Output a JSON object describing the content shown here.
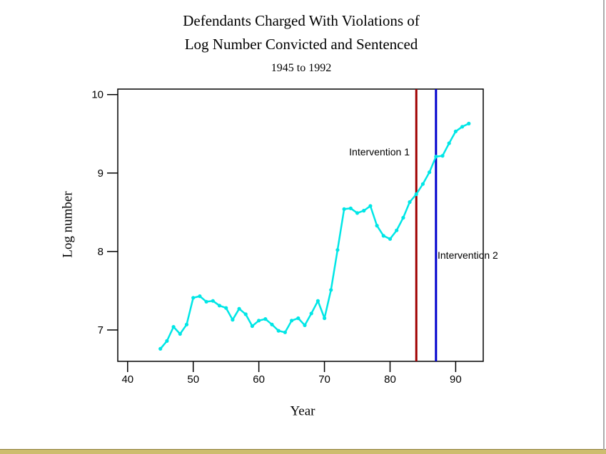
{
  "title": {
    "line1": "Defendants Charged With Violations of",
    "line2": "Log Number Convicted and Sentenced",
    "line3": "1945 to 1992"
  },
  "chart_data": {
    "type": "line",
    "title": "Defendants Charged With Violations of Log Number Convicted and Sentenced",
    "subtitle": "1945 to 1992",
    "xlabel": "Year",
    "ylabel": "Log number",
    "grid": false,
    "legend": "none",
    "series_name": "Log number convicted and sentenced",
    "series_color": "#00E6E6",
    "marker": "circle",
    "x": [
      1945,
      1946,
      1947,
      1948,
      1949,
      1950,
      1951,
      1952,
      1953,
      1954,
      1955,
      1956,
      1957,
      1958,
      1959,
      1960,
      1961,
      1962,
      1963,
      1964,
      1965,
      1966,
      1967,
      1968,
      1969,
      1970,
      1971,
      1972,
      1973,
      1974,
      1975,
      1976,
      1977,
      1978,
      1979,
      1980,
      1981,
      1982,
      1983,
      1984,
      1985,
      1986,
      1987,
      1988,
      1989,
      1990,
      1991,
      1992
    ],
    "values": [
      6.76,
      6.86,
      7.04,
      6.95,
      7.07,
      7.41,
      7.43,
      7.36,
      7.37,
      7.31,
      7.28,
      7.13,
      7.27,
      7.2,
      7.05,
      7.12,
      7.14,
      7.07,
      6.99,
      6.97,
      7.12,
      7.15,
      7.06,
      7.21,
      7.37,
      7.15,
      7.51,
      8.02,
      8.54,
      8.55,
      8.49,
      8.52,
      8.58,
      8.33,
      8.2,
      8.16,
      8.27,
      8.43,
      8.63,
      8.73,
      8.86,
      9.01,
      9.21,
      9.22,
      9.38,
      9.53,
      9.59,
      9.63
    ],
    "x_tick_values": [
      1940,
      1950,
      1960,
      1970,
      1980,
      1990
    ],
    "x_tick_labels": [
      "40",
      "50",
      "60",
      "70",
      "80",
      "90"
    ],
    "y_ticks": [
      7,
      8,
      9,
      10
    ],
    "xlim": [
      1938.5,
      1994.2
    ],
    "ylim": [
      6.6,
      10.07
    ],
    "annotations": [
      {
        "name": "intervention-1",
        "label": "Intervention 1",
        "x": 1984,
        "line_color": "#A00000"
      },
      {
        "name": "intervention-2",
        "label": "Intervention 2",
        "x": 1987,
        "line_color": "#0000CD"
      }
    ]
  },
  "window": {
    "bottom_strip_color": "#CDBD6E",
    "bottom_strip_border_color": "#8F813F",
    "right_border_color": "#ACACAC"
  }
}
